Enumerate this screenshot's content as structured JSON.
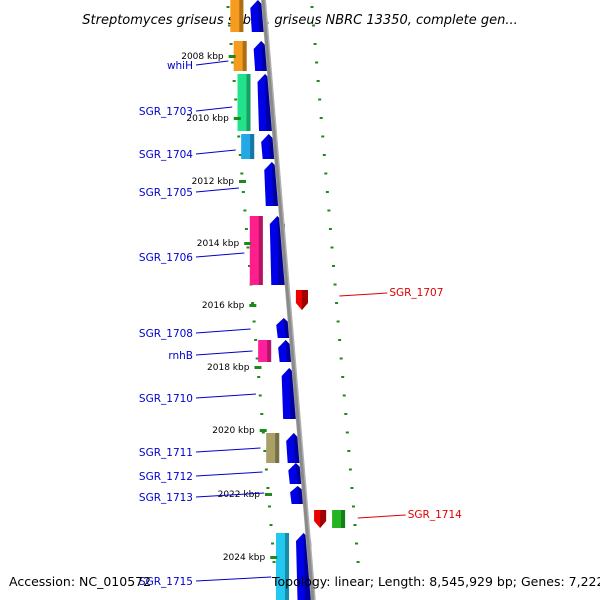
{
  "title": "Streptomyces griseus subsp. griseus NBRC 13350, complete gen...",
  "footer": {
    "accession": "Accession: NC_010572",
    "topology": "Topology: linear; Length: 8,545,929 bp; Genes: 7,222"
  },
  "colors": {
    "backbone": "#8a8a8a",
    "tick": "#1e8a1e",
    "forward_label": "#0000cc",
    "reverse_label": "#dd0000",
    "forward_strand": "#0000e8",
    "reverse_strand": "#ee0000"
  },
  "scale_ticks": [
    {
      "label": "2008 kbp"
    },
    {
      "label": "2010 kbp"
    },
    {
      "label": "2012 kbp"
    },
    {
      "label": "2014 kbp"
    },
    {
      "label": "2016 kbp"
    },
    {
      "label": "2018 kbp"
    },
    {
      "label": "2020 kbp"
    },
    {
      "label": "2022 kbp"
    },
    {
      "label": "2024 kbp"
    }
  ],
  "genes": [
    {
      "label": "",
      "strand": "+",
      "cog_color": "#f59b1e"
    },
    {
      "label": "whiH",
      "strand": "+",
      "cog_color": "#f59b1e"
    },
    {
      "label": "SGR_1703",
      "strand": "+",
      "cog_color": "#22e38c"
    },
    {
      "label": "SGR_1704",
      "strand": "+",
      "cog_color": "#22a8e6"
    },
    {
      "label": "SGR_1705",
      "strand": "+",
      "cog_color": ""
    },
    {
      "label": "SGR_1706",
      "strand": "+",
      "cog_color": "#ff1e8c"
    },
    {
      "label": "SGR_1707",
      "strand": "-",
      "cog_color": ""
    },
    {
      "label": "SGR_1708",
      "strand": "+",
      "cog_color": ""
    },
    {
      "label": "rnhB",
      "strand": "+",
      "cog_color": "#ff1e9c"
    },
    {
      "label": "SGR_1710",
      "strand": "+",
      "cog_color": ""
    },
    {
      "label": "SGR_1711",
      "strand": "+",
      "cog_color": "#a8a066"
    },
    {
      "label": "SGR_1712",
      "strand": "+",
      "cog_color": ""
    },
    {
      "label": "SGR_1713",
      "strand": "+",
      "cog_color": ""
    },
    {
      "label": "SGR_1714",
      "strand": "-",
      "cog_color": "#22b422"
    },
    {
      "label": "SGR_1715",
      "strand": "+",
      "cog_color": "#22c8f0"
    }
  ]
}
